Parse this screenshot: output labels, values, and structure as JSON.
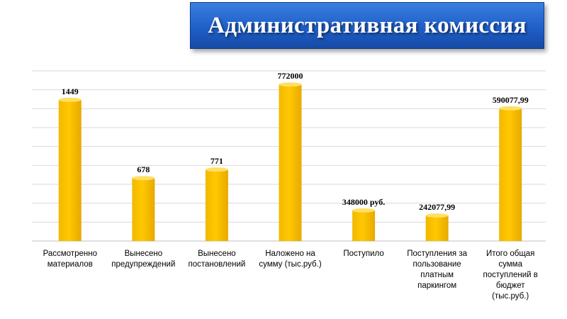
{
  "header": {
    "title": "Административная комиссия"
  },
  "chart_data": {
    "type": "bar",
    "title": "",
    "xlabel": "",
    "ylabel": "",
    "grid": true,
    "bar_color": "#ffc800",
    "categories": [
      [
        "Рассмотренно",
        "материалов"
      ],
      [
        "Вынесено",
        "предупреждений"
      ],
      [
        "Вынесено",
        "постановлений"
      ],
      [
        "Наложено на",
        "сумму   (тыс.руб.)"
      ],
      [
        "Поступило"
      ],
      [
        "Поступления за",
        "пользование",
        "платным",
        "паркингом"
      ],
      [
        "Итого общая",
        "сумма",
        "поступлений  в",
        "бюджет",
        "(тыс.руб.)"
      ]
    ],
    "values": [
      1449,
      678,
      771,
      772000,
      348000,
      242077.99,
      590077.99
    ],
    "value_labels": [
      "1449",
      "678",
      "771",
      "772000",
      "348000 руб.",
      "242077,99",
      "590077,99"
    ],
    "relative_heights": [
      0.83,
      0.37,
      0.42,
      0.92,
      0.18,
      0.15,
      0.78
    ]
  }
}
